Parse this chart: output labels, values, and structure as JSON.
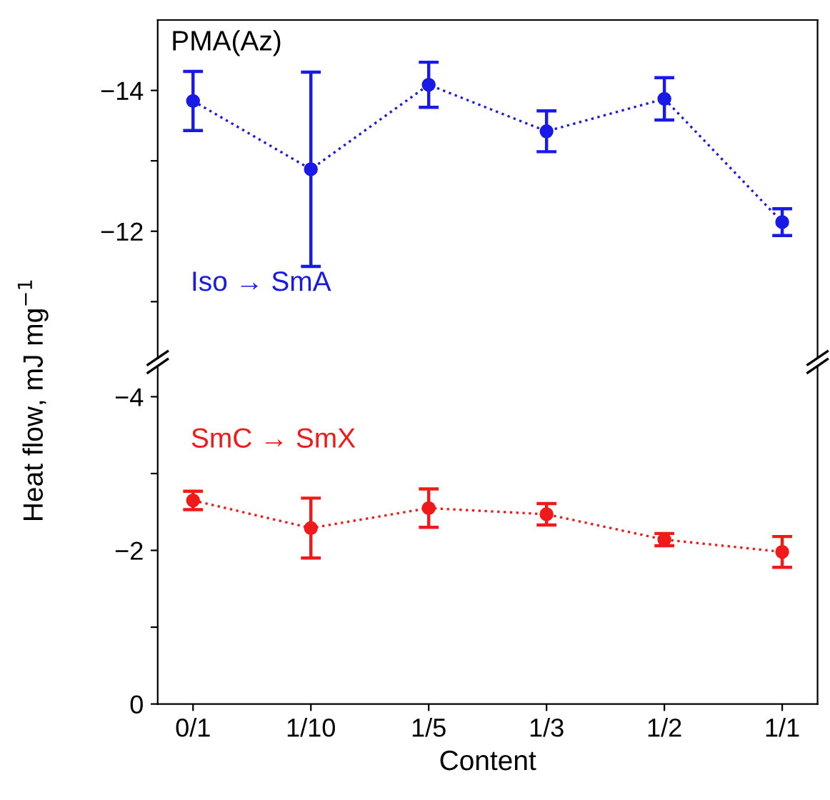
{
  "chart_data": [
    {
      "type": "line",
      "categories": [
        null,
        null,
        null,
        null,
        null,
        null
      ],
      "ylim": [
        -10.2,
        -15
      ],
      "yticks": [
        {
          "value": -14,
          "label": "−14"
        },
        {
          "value": -13,
          "label": null
        },
        {
          "value": -12,
          "label": "−12"
        },
        {
          "value": -11,
          "label": null
        }
      ],
      "tick_labels": "y",
      "marker": "circle",
      "line_style": "dotted",
      "grid": false,
      "legend": false,
      "annotations": [
        "PMA(Az)"
      ],
      "series": [
        {
          "name": "Iso → SmA",
          "color": "#1a1ae6",
          "values": [
            -13.85,
            -12.88,
            -14.08,
            -13.42,
            -13.88,
            -12.13
          ],
          "errors": [
            0.42,
            1.38,
            0.32,
            0.29,
            0.3,
            0.19
          ]
        }
      ]
    },
    {
      "type": "line",
      "categories": [
        "0/1",
        "1/10",
        "1/5",
        "1/3",
        "1/2",
        "1/1"
      ],
      "ylim": [
        0,
        -4.4
      ],
      "yticks": [
        0,
        {
          "value": -1,
          "label": null
        },
        {
          "value": -2,
          "label": "−2"
        },
        {
          "value": -3,
          "label": null
        },
        {
          "value": -4,
          "label": "−4"
        }
      ],
      "xlabel": "Content",
      "ylabel": "Heat flow, mJ mg$^{−1}$",
      "marker": "circle",
      "line_style": "dotted",
      "grid": false,
      "legend": false,
      "series": [
        {
          "name": "SmC → SmX",
          "color": "#f01a1a",
          "values": [
            -2.65,
            -2.29,
            -2.55,
            -2.47,
            -2.14,
            -1.98
          ],
          "errors": [
            0.12,
            0.39,
            0.25,
            0.14,
            0.08,
            0.2
          ]
        }
      ]
    }
  ]
}
